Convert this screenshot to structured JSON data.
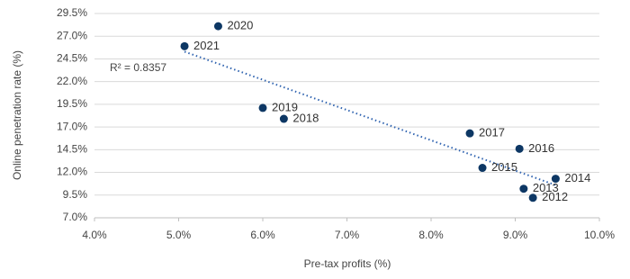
{
  "chart_data": {
    "type": "scatter",
    "x_label": "Pre-tax profits (%)",
    "y_label": "Online penetration rate (%)",
    "annotation": "R² = 0.8357",
    "color": "#0d3764",
    "trend_color": "#2f63b0",
    "grid": true,
    "labels": [
      "2020",
      "2021",
      "2019",
      "2018",
      "2017",
      "2016",
      "2015",
      "2014",
      "2013",
      "2012"
    ],
    "x": [
      5.47,
      5.07,
      6.0,
      6.25,
      8.46,
      9.05,
      8.61,
      9.48,
      9.1,
      9.21
    ],
    "values": [
      28.1,
      25.9,
      19.1,
      17.9,
      16.3,
      14.6,
      12.5,
      11.3,
      10.2,
      9.2
    ],
    "trendline": {
      "x": [
        5.07,
        9.48
      ],
      "values": [
        25.3,
        10.6
      ]
    },
    "xlim": [
      4.0,
      10.0
    ],
    "ylim": [
      7.0,
      29.5
    ],
    "xticks": [
      {
        "value": 4,
        "label": "4.0%"
      },
      {
        "value": 5,
        "label": "5.0%"
      },
      {
        "value": 6,
        "label": "6.0%"
      },
      {
        "value": 7,
        "label": "7.0%"
      },
      {
        "value": 8,
        "label": "8.0%"
      },
      {
        "value": 9,
        "label": "9.0%"
      },
      {
        "value": 10,
        "label": "10.0%"
      }
    ],
    "yticks": [
      {
        "value": 7,
        "label": "7.0%"
      },
      {
        "value": 9.5,
        "label": "9.5%"
      },
      {
        "value": 12,
        "label": "12.0%"
      },
      {
        "value": 14.5,
        "label": "14.5%"
      },
      {
        "value": 17,
        "label": "17.0%"
      },
      {
        "value": 19.5,
        "label": "19.5%"
      },
      {
        "value": 22,
        "label": "22.0%"
      },
      {
        "value": 24.5,
        "label": "24.5%"
      },
      {
        "value": 27,
        "label": "27.0%"
      },
      {
        "value": 29.5,
        "label": "29.5%"
      }
    ]
  }
}
